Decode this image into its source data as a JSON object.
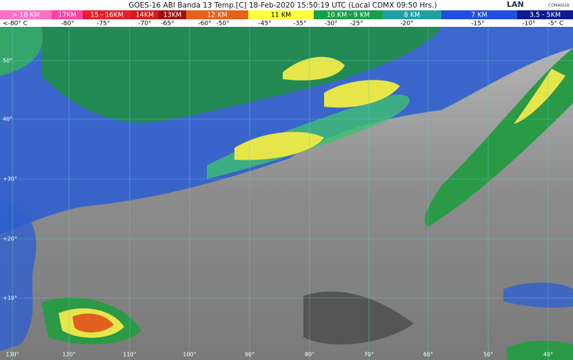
{
  "header": {
    "title": "GOES-16 ABI Banda 13 Temp.[C] 18-Feb-2020 15:50:19 UTC (Local CDMX  09:50 Hrs.)",
    "logo_left": "LAN",
    "logo_right": "CONAGUA"
  },
  "legend": {
    "heights": [
      "> 18 KM",
      "17KM",
      "15 - 16KM",
      "14KM",
      "13KM",
      "12 KM",
      "11 KM",
      "10 KM - 9 KM",
      "8 KM",
      "7 KM",
      "3.5 - 5KM"
    ],
    "temperatures": [
      "<-80° C",
      "-80°",
      "-75°",
      "-70°",
      "-65°",
      "-60°",
      "-50°",
      "-45°",
      "-35°",
      "-30°",
      "-25°",
      "-20°",
      "-15°",
      "-10°",
      "-5° C"
    ]
  },
  "map": {
    "latitudes": [
      "50°",
      "40°",
      "+30°",
      "+20°",
      "+10°"
    ],
    "longitudes": [
      "130°",
      "120°",
      "110°",
      "100°",
      "90°",
      "80°",
      "70°",
      "60°",
      "50°",
      "40°"
    ]
  }
}
